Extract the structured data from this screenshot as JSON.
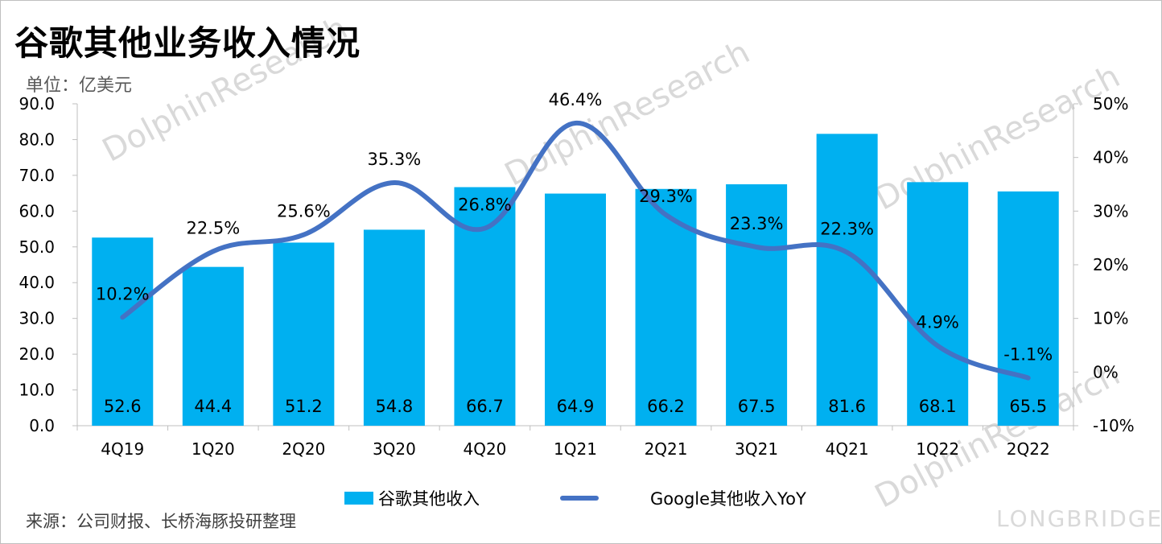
{
  "title": "谷歌其他业务收入情况",
  "unit_label": "单位：亿美元",
  "source_label": "来源：公司财报、长桥海豚投研整理",
  "watermark": {
    "brand_text": "LONGBRIDGE",
    "research_text": "DolphinResearch"
  },
  "colors": {
    "bar": "#00b0f0",
    "line": "#4472c4",
    "axis": "#bfbfbf",
    "grid": "none"
  },
  "chart_data": {
    "type": "bar",
    "categories": [
      "4Q19",
      "1Q20",
      "2Q20",
      "3Q20",
      "4Q20",
      "1Q21",
      "2Q21",
      "3Q21",
      "4Q21",
      "1Q22",
      "2Q22"
    ],
    "series": [
      {
        "name": "谷歌其他收入",
        "type": "bar",
        "axis": "left",
        "values": [
          52.6,
          44.4,
          51.2,
          54.8,
          66.7,
          64.9,
          66.2,
          67.5,
          81.6,
          68.1,
          65.5
        ],
        "labels": [
          "52.6",
          "44.4",
          "51.2",
          "54.8",
          "66.7",
          "64.9",
          "66.2",
          "67.5",
          "81.6",
          "68.1",
          "65.5"
        ]
      },
      {
        "name": "Google其他收入YoY",
        "type": "line",
        "axis": "right",
        "values": [
          10.2,
          22.5,
          25.6,
          35.3,
          26.8,
          46.4,
          29.3,
          23.3,
          22.3,
          4.9,
          -1.1
        ],
        "labels": [
          "10.2%",
          "22.5%",
          "25.6%",
          "35.3%",
          "26.8%",
          "46.4%",
          "29.3%",
          "23.3%",
          "22.3%",
          "4.9%",
          "-1.1%"
        ]
      }
    ],
    "y_left": {
      "min": 0,
      "max": 90,
      "ticks": [
        "0.0",
        "10.0",
        "20.0",
        "30.0",
        "40.0",
        "50.0",
        "60.0",
        "70.0",
        "80.0",
        "90.0"
      ]
    },
    "y_right": {
      "min": -10,
      "max": 50,
      "ticks": [
        "-10%",
        "0%",
        "10%",
        "20%",
        "30%",
        "40%",
        "50%"
      ]
    },
    "legend_position": "bottom"
  }
}
